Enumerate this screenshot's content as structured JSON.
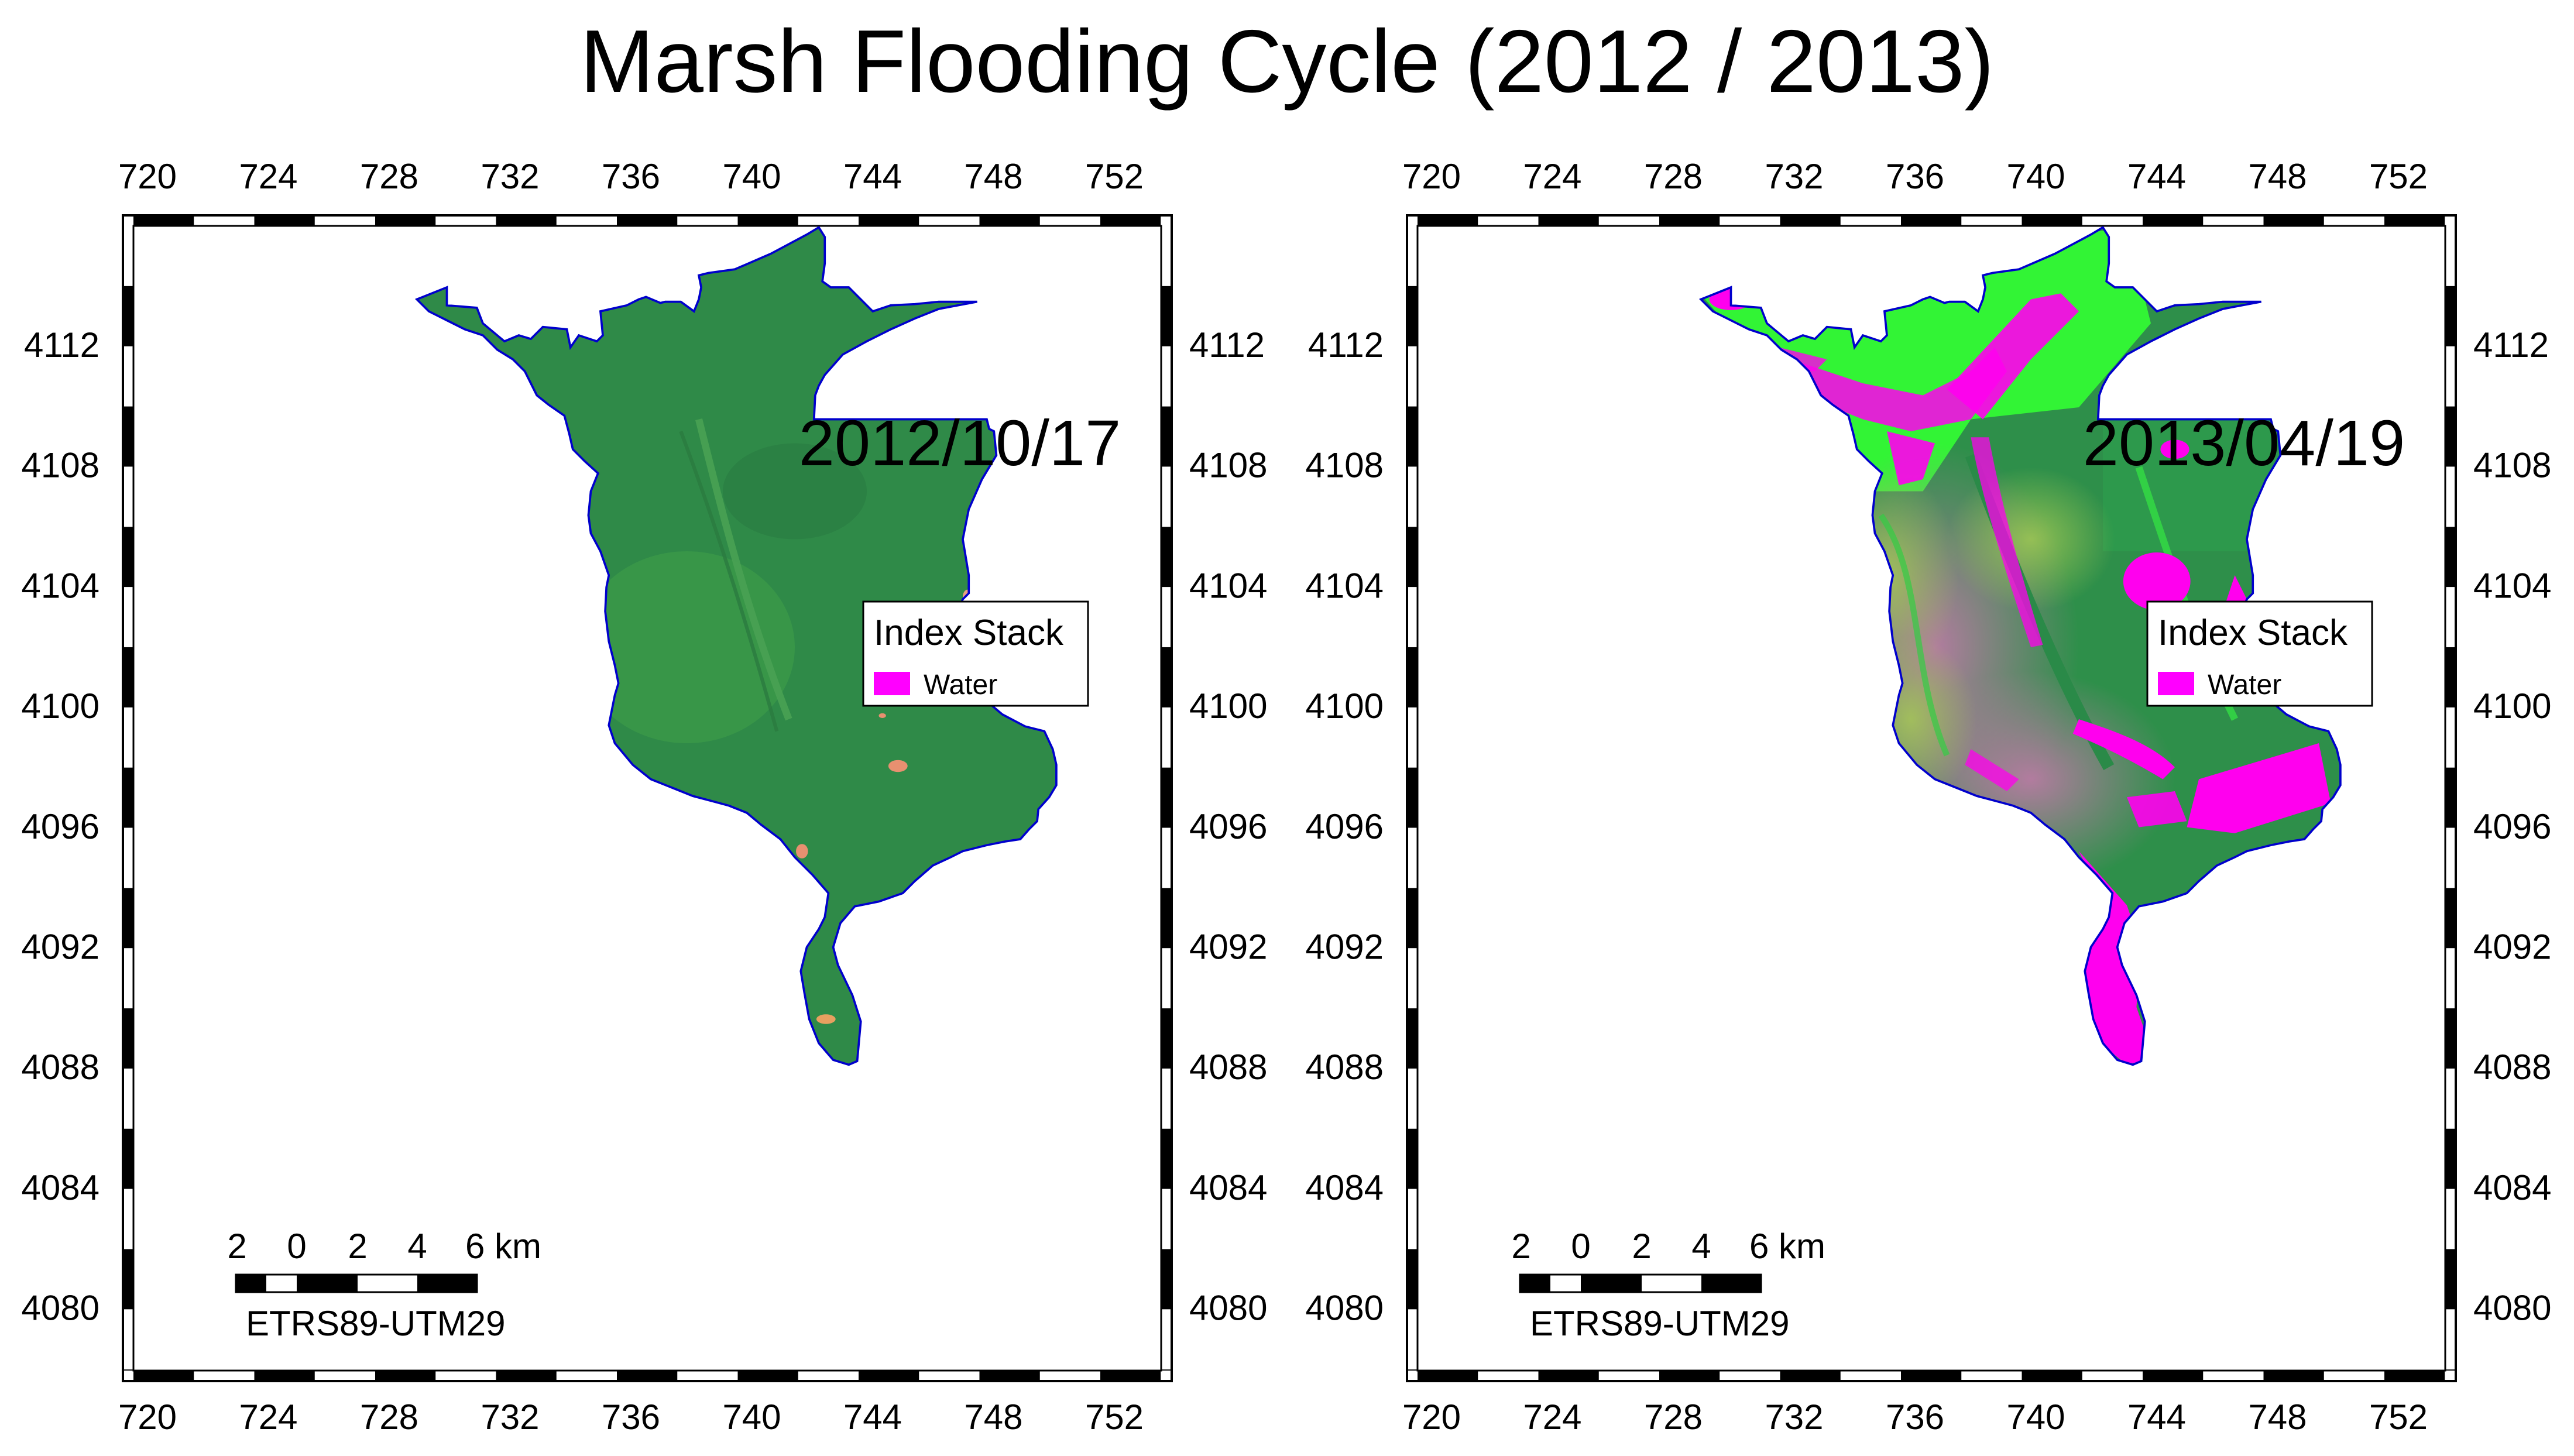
{
  "title": "Marsh Flooding Cycle (2012 / 2013)",
  "axes": {
    "x_ticks": [
      "720",
      "724",
      "728",
      "732",
      "736",
      "740",
      "744",
      "748",
      "752"
    ],
    "y_ticks": [
      "4112",
      "4108",
      "4104",
      "4100",
      "4096",
      "4092",
      "4088",
      "4084",
      "4080"
    ]
  },
  "panels": [
    {
      "date": "2012/10/17",
      "legend": {
        "title": "Index Stack",
        "items": [
          {
            "label": "Water",
            "color": "#ff00ff"
          }
        ]
      },
      "scale_bar": {
        "labels": [
          "2",
          "0",
          "2",
          "4",
          "6 km"
        ]
      },
      "crs": "ETRS89-UTM29",
      "colors": {
        "base": "#2e8a44",
        "highlight": "#3fa84f",
        "boundary": "#0000cc",
        "accent": "#e89070"
      }
    },
    {
      "date": "2013/04/19",
      "legend": {
        "title": "Index Stack",
        "items": [
          {
            "label": "Water",
            "color": "#ff00ff"
          }
        ]
      },
      "scale_bar": {
        "labels": [
          "2",
          "0",
          "2",
          "4",
          "6 km"
        ]
      },
      "crs": "ETRS89-UTM29",
      "colors": {
        "base": "#2e8f4a",
        "highlight": "#33ff33",
        "boundary": "#0000cc",
        "accent": "#ff00ee"
      }
    }
  ]
}
